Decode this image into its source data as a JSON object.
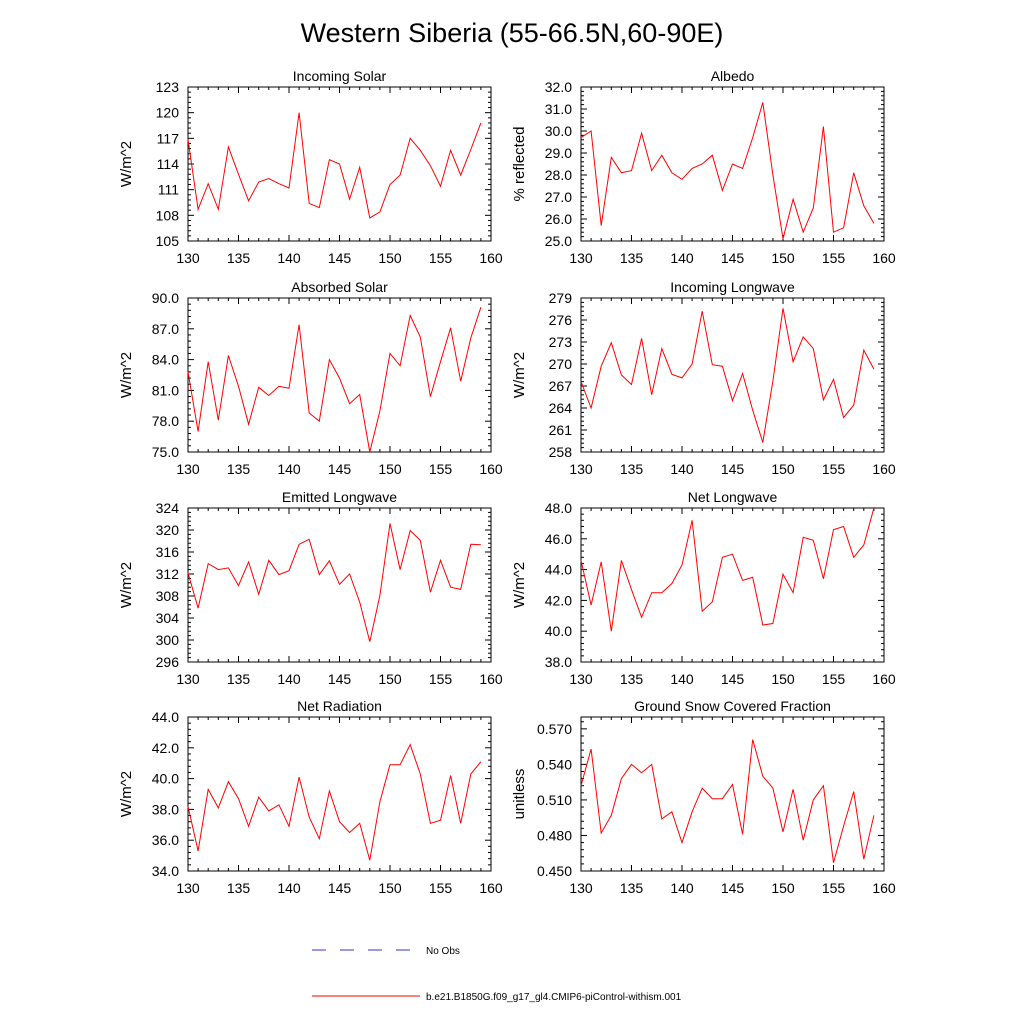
{
  "title": "Western Siberia (55-66.5N,60-90E)",
  "legend": {
    "entries": [
      {
        "label": "No Obs",
        "color": "#3333cc",
        "style": "dashed"
      },
      {
        "label": "b.e21.B1850G.f09_g17_gl4.CMIP6-piControl-withism.001",
        "color": "#ff0000",
        "style": "solid"
      }
    ]
  },
  "colors": {
    "model": "#ff0000",
    "obs": "#3333cc",
    "axes": "#000000"
  },
  "chart_data": [
    {
      "type": "line",
      "title": "Incoming Solar",
      "ylabel": "W/m^2",
      "xlabel": "",
      "xlim": [
        130,
        160
      ],
      "ylim": [
        105,
        123
      ],
      "xticks": [
        "130",
        "135",
        "140",
        "145",
        "150",
        "155",
        "160"
      ],
      "yticks": [
        "105",
        "108",
        "111",
        "114",
        "117",
        "120",
        "123"
      ],
      "x": [
        130,
        131,
        132,
        133,
        134,
        135,
        136,
        137,
        138,
        139,
        140,
        141,
        142,
        143,
        144,
        145,
        146,
        147,
        148,
        149,
        150,
        151,
        152,
        153,
        154,
        155,
        156,
        157,
        158,
        159
      ],
      "series": [
        {
          "values": [
            116.9,
            108.7,
            111.7,
            108.7,
            116.0,
            112.8,
            109.7,
            111.9,
            112.3,
            111.7,
            111.2,
            120.0,
            109.4,
            108.9,
            114.5,
            114.0,
            109.9,
            113.6,
            107.7,
            108.4,
            111.6,
            112.7,
            117.0,
            115.6,
            113.8,
            111.4,
            115.6,
            112.7,
            115.7,
            118.8
          ]
        }
      ]
    },
    {
      "type": "line",
      "title": "Albedo",
      "ylabel": "% reflected",
      "xlabel": "",
      "xlim": [
        130,
        160
      ],
      "ylim": [
        25.0,
        32.0
      ],
      "xticks": [
        "130",
        "135",
        "140",
        "145",
        "150",
        "155",
        "160"
      ],
      "yticks": [
        "25.0",
        "26.0",
        "27.0",
        "28.0",
        "29.0",
        "30.0",
        "31.0",
        "32.0"
      ],
      "x": [
        130,
        131,
        132,
        133,
        134,
        135,
        136,
        137,
        138,
        139,
        140,
        141,
        142,
        143,
        144,
        145,
        146,
        147,
        148,
        149,
        150,
        151,
        152,
        153,
        154,
        155,
        156,
        157,
        158,
        159
      ],
      "series": [
        {
          "values": [
            29.7,
            30.0,
            25.7,
            28.8,
            28.1,
            28.2,
            29.9,
            28.2,
            28.9,
            28.1,
            27.8,
            28.3,
            28.5,
            28.9,
            27.3,
            28.5,
            28.3,
            29.7,
            31.3,
            28.0,
            25.1,
            26.9,
            25.4,
            26.5,
            30.2,
            25.4,
            25.6,
            28.1,
            26.6,
            25.8
          ]
        }
      ]
    },
    {
      "type": "line",
      "title": "Absorbed Solar",
      "ylabel": "W/m^2",
      "xlabel": "",
      "xlim": [
        130,
        160
      ],
      "ylim": [
        75.0,
        90.0
      ],
      "xticks": [
        "130",
        "135",
        "140",
        "145",
        "150",
        "155",
        "160"
      ],
      "yticks": [
        "75.0",
        "78.0",
        "81.0",
        "84.0",
        "87.0",
        "90.0"
      ],
      "x": [
        130,
        131,
        132,
        133,
        134,
        135,
        136,
        137,
        138,
        139,
        140,
        141,
        142,
        143,
        144,
        145,
        146,
        147,
        148,
        149,
        150,
        151,
        152,
        153,
        154,
        155,
        156,
        157,
        158,
        159
      ],
      "series": [
        {
          "values": [
            82.8,
            77.0,
            83.8,
            78.1,
            84.4,
            81.4,
            77.7,
            81.3,
            80.5,
            81.4,
            81.2,
            87.4,
            78.8,
            78.0,
            84.0,
            82.2,
            79.7,
            80.6,
            75.0,
            79.0,
            84.6,
            83.4,
            88.3,
            86.2,
            80.4,
            83.8,
            87.1,
            81.9,
            86.1,
            89.1
          ]
        }
      ]
    },
    {
      "type": "line",
      "title": "Incoming Longwave",
      "ylabel": "W/m^2",
      "xlabel": "",
      "xlim": [
        130,
        160
      ],
      "ylim": [
        258,
        279
      ],
      "xticks": [
        "130",
        "135",
        "140",
        "145",
        "150",
        "155",
        "160"
      ],
      "yticks": [
        "258",
        "261",
        "264",
        "267",
        "270",
        "273",
        "276",
        "279"
      ],
      "x": [
        130,
        131,
        132,
        133,
        134,
        135,
        136,
        137,
        138,
        139,
        140,
        141,
        142,
        143,
        144,
        145,
        146,
        147,
        148,
        149,
        150,
        151,
        152,
        153,
        154,
        155,
        156,
        157,
        158,
        159
      ],
      "series": [
        {
          "values": [
            267.6,
            264.0,
            269.7,
            272.9,
            268.5,
            267.2,
            273.5,
            265.8,
            272.1,
            268.6,
            268.1,
            270.0,
            277.2,
            269.9,
            269.7,
            265.0,
            268.7,
            263.7,
            259.3,
            267.7,
            277.6,
            270.3,
            273.7,
            272.1,
            265.1,
            267.9,
            262.7,
            264.4,
            271.9,
            269.3
          ]
        }
      ]
    },
    {
      "type": "line",
      "title": "Emitted Longwave",
      "ylabel": "W/m^2",
      "xlabel": "",
      "xlim": [
        130,
        160
      ],
      "ylim": [
        296,
        324
      ],
      "xticks": [
        "130",
        "135",
        "140",
        "145",
        "150",
        "155",
        "160"
      ],
      "yticks": [
        "296",
        "300",
        "304",
        "308",
        "312",
        "316",
        "320",
        "324"
      ],
      "x": [
        130,
        131,
        132,
        133,
        134,
        135,
        136,
        137,
        138,
        139,
        140,
        141,
        142,
        143,
        144,
        145,
        146,
        147,
        148,
        149,
        150,
        151,
        152,
        153,
        154,
        155,
        156,
        157,
        158,
        159
      ],
      "series": [
        {
          "values": [
            312.2,
            305.8,
            313.9,
            312.8,
            313.1,
            309.9,
            314.2,
            308.3,
            314.5,
            311.9,
            312.6,
            317.4,
            318.3,
            311.9,
            314.4,
            310.1,
            312.0,
            306.9,
            299.7,
            308.1,
            321.2,
            312.8,
            319.9,
            318.1,
            308.7,
            314.5,
            309.6,
            309.2,
            317.4,
            317.3
          ]
        }
      ]
    },
    {
      "type": "line",
      "title": "Net Longwave",
      "ylabel": "W/m^2",
      "xlabel": "",
      "xlim": [
        130,
        160
      ],
      "ylim": [
        38.0,
        48.0
      ],
      "xticks": [
        "130",
        "135",
        "140",
        "145",
        "150",
        "155",
        "160"
      ],
      "yticks": [
        "38.0",
        "40.0",
        "42.0",
        "44.0",
        "46.0",
        "48.0"
      ],
      "x": [
        130,
        131,
        132,
        133,
        134,
        135,
        136,
        137,
        138,
        139,
        140,
        141,
        142,
        143,
        144,
        145,
        146,
        147,
        148,
        149,
        150,
        151,
        152,
        153,
        154,
        155,
        156,
        157,
        158,
        159
      ],
      "series": [
        {
          "values": [
            44.6,
            41.7,
            44.5,
            40.0,
            44.6,
            42.7,
            40.9,
            42.5,
            42.5,
            43.1,
            44.3,
            47.2,
            41.3,
            41.9,
            44.8,
            45.0,
            43.3,
            43.5,
            40.4,
            40.5,
            43.7,
            42.5,
            46.1,
            45.9,
            43.4,
            46.6,
            46.8,
            44.8,
            45.6,
            48.0
          ]
        }
      ]
    },
    {
      "type": "line",
      "title": "Net Radiation",
      "ylabel": "W/m^2",
      "xlabel": "",
      "xlim": [
        130,
        160
      ],
      "ylim": [
        34.0,
        44.0
      ],
      "xticks": [
        "130",
        "135",
        "140",
        "145",
        "150",
        "155",
        "160"
      ],
      "yticks": [
        "34.0",
        "36.0",
        "38.0",
        "40.0",
        "42.0",
        "44.0"
      ],
      "x": [
        130,
        131,
        132,
        133,
        134,
        135,
        136,
        137,
        138,
        139,
        140,
        141,
        142,
        143,
        144,
        145,
        146,
        147,
        148,
        149,
        150,
        151,
        152,
        153,
        154,
        155,
        156,
        157,
        158,
        159
      ],
      "series": [
        {
          "values": [
            38.2,
            35.3,
            39.3,
            38.1,
            39.8,
            38.7,
            36.9,
            38.8,
            37.9,
            38.3,
            36.9,
            40.1,
            37.5,
            36.1,
            39.2,
            37.2,
            36.5,
            37.1,
            34.7,
            38.5,
            40.9,
            40.9,
            42.2,
            40.3,
            37.1,
            37.3,
            40.2,
            37.1,
            40.3,
            41.1
          ]
        }
      ]
    },
    {
      "type": "line",
      "title": "Ground Snow Covered Fraction",
      "ylabel": "unitless",
      "xlabel": "",
      "xlim": [
        130,
        160
      ],
      "ylim": [
        0.45,
        0.58
      ],
      "xticks": [
        "130",
        "135",
        "140",
        "145",
        "150",
        "155",
        "160"
      ],
      "yticks": [
        "0.450",
        "0.480",
        "0.510",
        "0.540",
        "0.570"
      ],
      "x": [
        130,
        131,
        132,
        133,
        134,
        135,
        136,
        137,
        138,
        139,
        140,
        141,
        142,
        143,
        144,
        145,
        146,
        147,
        148,
        149,
        150,
        151,
        152,
        153,
        154,
        155,
        156,
        157,
        158,
        159
      ],
      "series": [
        {
          "values": [
            0.522,
            0.553,
            0.482,
            0.497,
            0.528,
            0.54,
            0.533,
            0.54,
            0.494,
            0.5,
            0.474,
            0.5,
            0.52,
            0.511,
            0.511,
            0.523,
            0.481,
            0.561,
            0.53,
            0.52,
            0.483,
            0.519,
            0.476,
            0.51,
            0.522,
            0.457,
            0.488,
            0.517,
            0.46,
            0.497
          ]
        }
      ]
    }
  ]
}
